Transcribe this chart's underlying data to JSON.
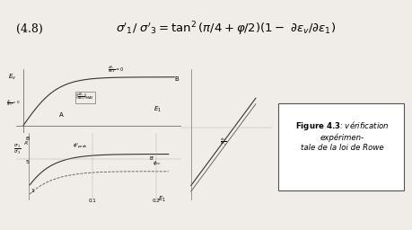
{
  "title_formula": "σ’₁/ σ’₃=tan²(π/4+φ/2)(1- ∂εᵥ/∂ε₁)",
  "eq_number": "(4.8)",
  "figure_label": "Figure 4.3",
  "figure_caption": ": vérification expérimen-\ntale de la loi de Rowe",
  "bg_color": "#f5f5f0",
  "box_color": "#d0ccc0",
  "axis_color": "#555555",
  "curve_color": "#333333"
}
